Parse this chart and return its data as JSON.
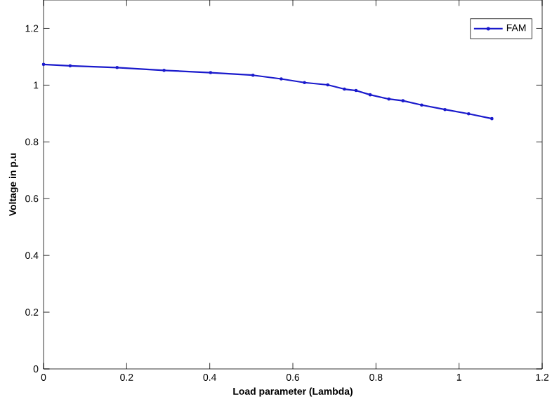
{
  "chart_data": {
    "type": "line",
    "xlabel": "Load parameter (Lambda)",
    "ylabel": "Voltage in p.u",
    "xlim": [
      0,
      1.2
    ],
    "ylim": [
      0,
      1.3
    ],
    "xticks": [
      0,
      0.2,
      0.4,
      0.6,
      0.8,
      1,
      1.2
    ],
    "yticks": [
      0,
      0.2,
      0.4,
      0.6,
      0.8,
      1,
      1.2
    ],
    "legend": "top right",
    "marker": "circle",
    "line_style": "solid",
    "grid": false,
    "series": [
      {
        "name": "FAM",
        "color": "#1a1acc",
        "x": [
          0,
          0.064,
          0.177,
          0.29,
          0.402,
          0.504,
          0.572,
          0.628,
          0.684,
          0.724,
          0.752,
          0.786,
          0.831,
          0.865,
          0.91,
          0.966,
          1.023,
          1.079
        ],
        "values": [
          1.073,
          1.068,
          1.062,
          1.052,
          1.044,
          1.035,
          1.022,
          1.009,
          1.001,
          0.986,
          0.981,
          0.966,
          0.951,
          0.945,
          0.93,
          0.914,
          0.899,
          0.882
        ]
      }
    ]
  }
}
